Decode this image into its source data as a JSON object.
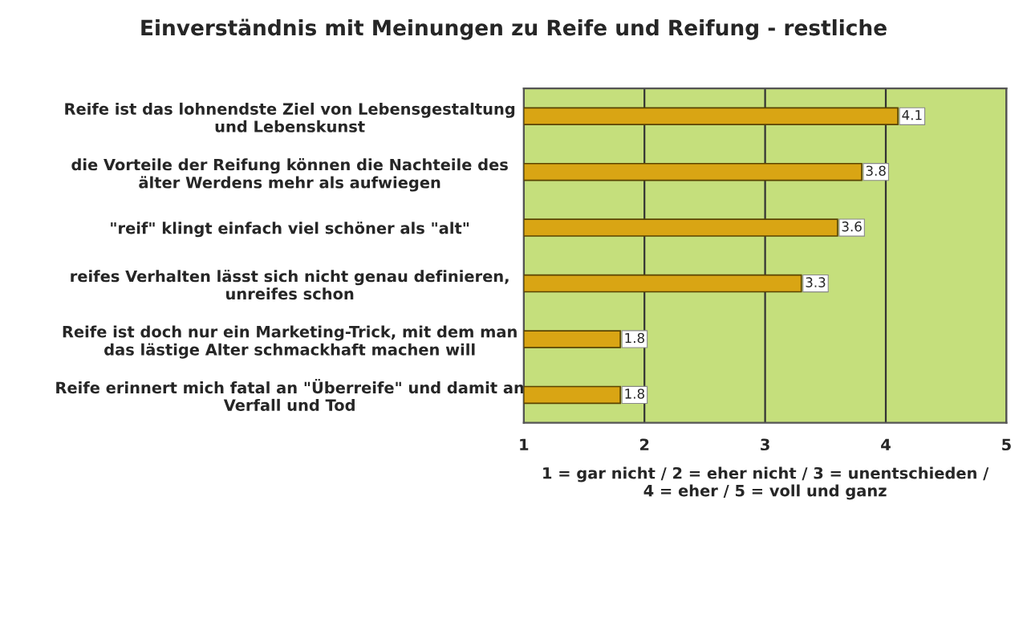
{
  "chart_data": {
    "type": "bar",
    "orientation": "horizontal",
    "title": "Einverständnis mit Meinungen zu Reife und Reifung - restliche",
    "categories": [
      "Reife ist das lohnendste Ziel von Lebensgestaltung\nund Lebenskunst",
      "die Vorteile der Reifung können die Nachteile des\nälter Werdens mehr als aufwiegen",
      "\"reif\" klingt einfach viel schöner als \"alt\"",
      "reifes Verhalten lässt sich nicht genau definieren,\nunreifes schon",
      "Reife ist doch nur ein Marketing-Trick, mit dem man\ndas lästige Alter schmackhaft machen will",
      "Reife erinnert mich fatal an \"Überreife\" und damit an\nVerfall und Tod"
    ],
    "values": [
      4.1,
      3.8,
      3.6,
      3.3,
      1.8,
      1.8
    ],
    "color": "#d9a514",
    "xlim": [
      1,
      5
    ],
    "xticks": [
      1,
      2,
      3,
      4,
      5
    ],
    "xlabel": "1 = gar nicht / 2 = eher nicht / 3 = unentschieden /\n4 = eher / 5 = voll und ganz",
    "grid": "x",
    "data_labels": true,
    "legend": false
  }
}
